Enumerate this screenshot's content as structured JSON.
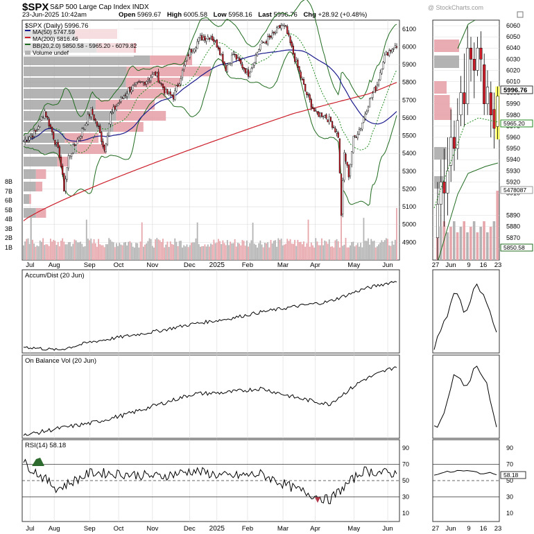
{
  "header": {
    "symbol": "$SPX",
    "name": "S&P 500 Large Cap Index",
    "exchange": "INDX",
    "watermark": "@ StockCharts.com",
    "datetime": "23-Jun-2025 10:42am",
    "open_label": "Open",
    "open": "5969.67",
    "high_label": "High",
    "high": "6005.58",
    "low_label": "Low",
    "low": "5958.16",
    "last_label": "Last",
    "last": "5996.76",
    "chg_label": "Chg",
    "chg": "+28.92 (+0.48%)"
  },
  "legend": {
    "price": "$SPX (Daily) 5996.76",
    "ma50": "MA(50) 5747.59",
    "ma200": "MA(200) 5816.46",
    "bb": "BB(20,2.0) 5850.58 - 5965.20 - 6079.82",
    "volume": "Volume undef"
  },
  "colors": {
    "ma50": "#1a1a8c",
    "ma200": "#cc1f2b",
    "bb": "#1f6b1f",
    "bb_mid": "#1f8a1f",
    "vol_up": "#b3b3b3",
    "vol_down": "#e6a6ab",
    "vbp_gray": "#a6a6a6",
    "vbp_red": "#e59ea4",
    "candle_up_fill": "#ffffff",
    "candle_down_fill": "#cc1f2b",
    "grid": "#d9d9d9",
    "highlight": "#ffff66"
  },
  "x_labels": [
    "Jul",
    "Aug",
    "Sep",
    "Oct",
    "Nov",
    "Dec",
    "2025",
    "Feb",
    "Mar",
    "Apr",
    "May",
    "Jun"
  ],
  "inset_x_labels": [
    "27",
    "Jun",
    "9",
    "16",
    "23"
  ],
  "price_axis": [
    6100,
    6000,
    5900,
    5800,
    5700,
    5600,
    5500,
    5400,
    5300,
    5200,
    5100,
    5000,
    4900
  ],
  "volume_axis": [
    "8B",
    "7B",
    "6B",
    "5B",
    "4B",
    "3B",
    "2B",
    "1B"
  ],
  "inset_price_axis": [
    6060,
    6050,
    6040,
    6030,
    6020,
    6010,
    6000,
    5990,
    5980,
    5970,
    5960,
    5950,
    5940,
    5930,
    5920,
    5910,
    5890,
    5880,
    5870,
    5860
  ],
  "inset_tags": {
    "last": "5996.76",
    "bb_mid": "5965.20",
    "vol": "5478087",
    "bb_low": "5850.58"
  },
  "panels": {
    "ad_title": "Accum/Dist (20 Jun)",
    "obv_title": "On Balance Vol (20 Jun)",
    "rsi_title": "RSI(14) 58.18",
    "rsi_axis": [
      90,
      70,
      50,
      30,
      10
    ],
    "rsi_tag": "58.18"
  },
  "chart_data": [
    {
      "type": "candlestick",
      "title": "$SPX S&P 500 Large Cap Index",
      "ylim": [
        4800,
        6150
      ],
      "description_series": [
        "price",
        "MA(50)",
        "MA(200)",
        "BB(20,2.0)",
        "Volume"
      ],
      "keypoints": {
        "x": [
          "Jul",
          "Aug",
          "Sep",
          "Oct",
          "Nov",
          "Dec",
          "2025",
          "Feb",
          "Mar",
          "Apr",
          "May",
          "Jun"
        ],
        "close": [
          5480,
          5440,
          5630,
          5760,
          5730,
          6050,
          5900,
          6060,
          5760,
          5350,
          5680,
          5990
        ],
        "ma50": [
          5350,
          5500,
          5520,
          5600,
          5700,
          5820,
          5930,
          5960,
          5880,
          5580,
          5530,
          5747.59
        ],
        "ma200": [
          5020,
          5130,
          5230,
          5330,
          5420,
          5530,
          5650,
          5760,
          5810,
          5780,
          5760,
          5816.46
        ]
      }
    },
    {
      "type": "line",
      "title": "Accum/Dist (20 Jun)",
      "x": [
        "Jul",
        "Aug",
        "Sep",
        "Oct",
        "Nov",
        "Dec",
        "2025",
        "Feb",
        "Mar",
        "Apr",
        "May",
        "Jun"
      ],
      "relative_values": [
        0.05,
        0.0,
        0.12,
        0.2,
        0.28,
        0.38,
        0.45,
        0.55,
        0.63,
        0.7,
        0.88,
        1.0
      ]
    },
    {
      "type": "line",
      "title": "On Balance Vol (20 Jun)",
      "x": [
        "Jul",
        "Aug",
        "Sep",
        "Oct",
        "Nov",
        "Dec",
        "2025",
        "Feb",
        "Mar",
        "Apr",
        "May",
        "Jun"
      ],
      "relative_values": [
        0.0,
        0.1,
        0.18,
        0.3,
        0.45,
        0.6,
        0.62,
        0.68,
        0.55,
        0.45,
        0.8,
        1.0
      ]
    },
    {
      "type": "line",
      "title": "RSI(14) 58.18",
      "ylim": [
        0,
        100
      ],
      "x": [
        "Jul",
        "Aug",
        "Sep",
        "Oct",
        "Nov",
        "Dec",
        "2025",
        "Feb",
        "Mar",
        "Apr",
        "May",
        "Jun"
      ],
      "values": [
        72,
        40,
        60,
        58,
        55,
        62,
        55,
        58,
        40,
        26,
        62,
        58.18
      ]
    }
  ]
}
